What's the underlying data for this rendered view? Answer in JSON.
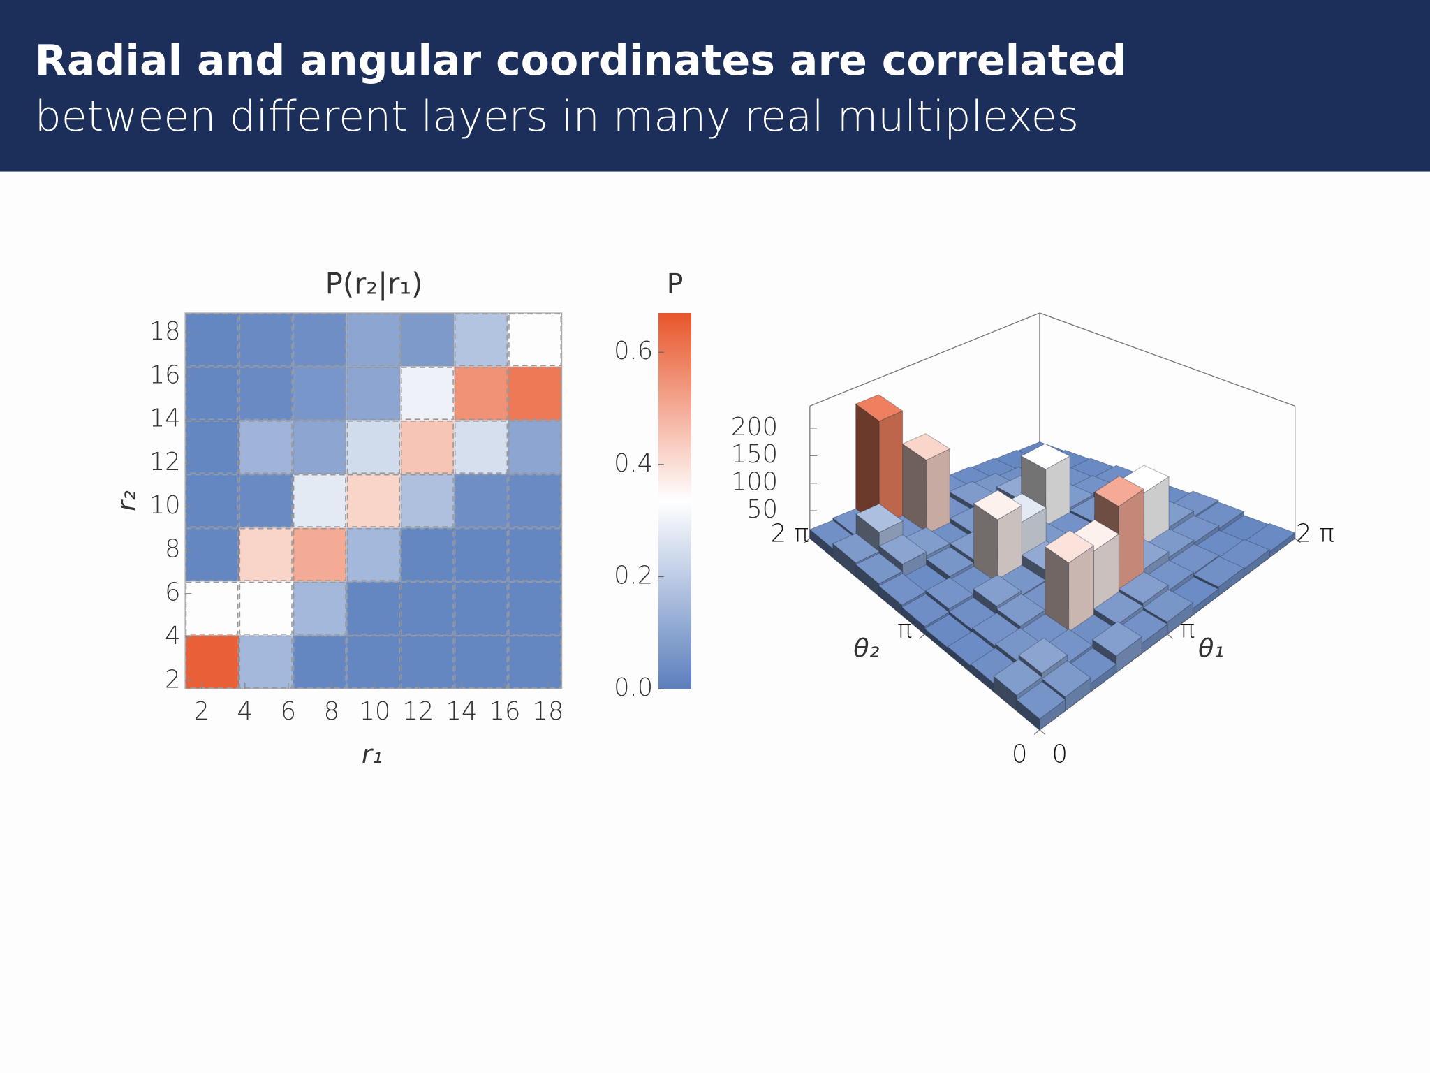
{
  "header": {
    "title": "Radial and angular coordinates are correlated",
    "subtitle": "between different layers in many real multiplexes"
  },
  "chart_data": [
    {
      "type": "heatmap",
      "title": "P(r₂|r₁)",
      "xlabel": "r₁",
      "ylabel": "r₂",
      "xbins": [
        1.24,
        3.72,
        6.21,
        8.69,
        11.18,
        13.66,
        16.15,
        18.63
      ],
      "ybins": [
        1.62,
        4.09,
        6.56,
        9.03,
        11.5,
        13.97,
        16.44,
        18.9
      ],
      "xlim": [
        1.24,
        18.63
      ],
      "ylim": [
        1.62,
        18.9
      ],
      "xticks": [
        2,
        4,
        6,
        8,
        10,
        12,
        14,
        16,
        18
      ],
      "yticks": [
        2,
        4,
        6,
        8,
        10,
        12,
        14,
        16,
        18
      ],
      "values": [
        [
          0.65,
          0.15,
          0.02,
          0.02,
          0.02,
          0.02,
          0.02
        ],
        [
          0.33,
          0.33,
          0.15,
          0.02,
          0.02,
          0.02,
          0.02
        ],
        [
          0.02,
          0.42,
          0.5,
          0.15,
          0.02,
          0.02,
          0.02
        ],
        [
          0.02,
          0.03,
          0.28,
          0.42,
          0.17,
          0.04,
          0.03
        ],
        [
          0.02,
          0.14,
          0.1,
          0.24,
          0.45,
          0.25,
          0.1
        ],
        [
          0.02,
          0.03,
          0.06,
          0.1,
          0.3,
          0.55,
          0.6
        ],
        [
          0.02,
          0.03,
          0.04,
          0.1,
          0.07,
          0.18,
          0.33
        ]
      ],
      "colorbar": {
        "title": "P",
        "zlim": [
          0,
          0.67
        ],
        "zticks": [
          {
            "value": 0,
            "label": "0.0"
          },
          0.2,
          0.4,
          0.6
        ]
      },
      "colors": [
        "#5b7fbd",
        "#ffffff",
        "#e8552a"
      ]
    },
    {
      "type": "bar3d",
      "xlabel": "θ₁",
      "ylabel": "θ₂",
      "xlim": [
        0,
        6.28318
      ],
      "ylim": [
        0,
        6.28318
      ],
      "xticks": [
        0,
        {
          "value": 3.14159,
          "label": "π"
        },
        {
          "value": 6.28318,
          "label": "2 π"
        }
      ],
      "yticks": [
        0,
        {
          "value": 3.14159,
          "label": "π"
        },
        {
          "value": 6.28318,
          "label": "2 π"
        }
      ],
      "zlim": [
        0,
        240
      ],
      "zticks": [
        50,
        100,
        150,
        200
      ],
      "values": [
        [
          20,
          25,
          15,
          30,
          18,
          22,
          12,
          16,
          14,
          10
        ],
        [
          28,
          35,
          20,
          15,
          25,
          30,
          20,
          18,
          12,
          8
        ],
        [
          15,
          22,
          18,
          140,
          130,
          180,
          35,
          25,
          20,
          15
        ],
        [
          12,
          18,
          25,
          20,
          30,
          22,
          45,
          120,
          28,
          18
        ],
        [
          10,
          15,
          30,
          22,
          40,
          28,
          20,
          35,
          25,
          12
        ],
        [
          14,
          20,
          16,
          130,
          100,
          24,
          18,
          22,
          30,
          16
        ],
        [
          18,
          12,
          22,
          28,
          20,
          35,
          120,
          26,
          18,
          14
        ],
        [
          22,
          35,
          28,
          16,
          24,
          18,
          40,
          30,
          16,
          10
        ],
        [
          25,
          60,
          20,
          150,
          18,
          26,
          22,
          15,
          12,
          8
        ],
        [
          16,
          20,
          210,
          24,
          22,
          16,
          12,
          10,
          8,
          6
        ]
      ],
      "colors": [
        "#5b7fbd",
        "#ffffff",
        "#e8552a"
      ]
    }
  ]
}
